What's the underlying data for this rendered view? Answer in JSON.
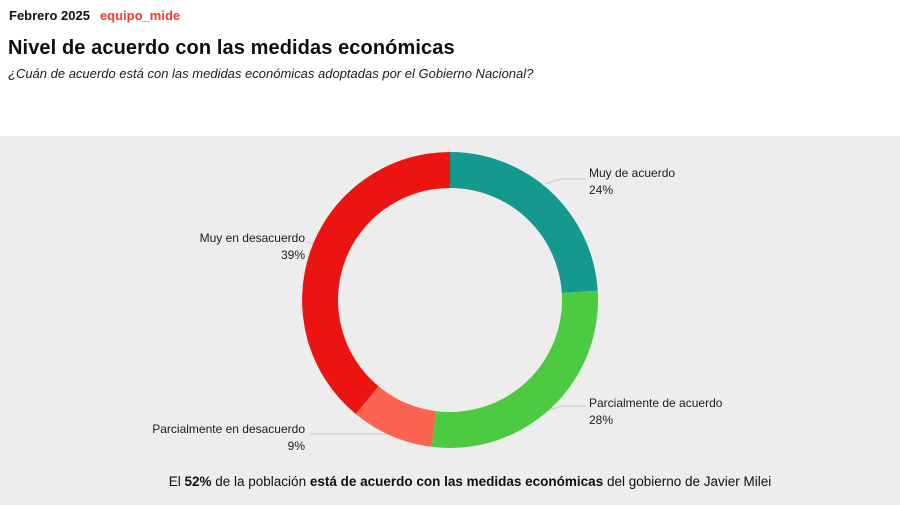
{
  "header": {
    "date": "Febrero 2025",
    "brand": "equipo_mide"
  },
  "title": "Nivel de acuerdo con las medidas económicas",
  "subtitle": "¿Cuán de acuerdo está con las medidas económicas adoptadas por el Gobierno Nacional?",
  "chart_data": {
    "type": "pie",
    "style": "donut",
    "title": "Nivel de acuerdo con las medidas económicas",
    "start_angle_deg": 0,
    "direction": "clockwise",
    "legend_position": "callout-labels",
    "segments": [
      {
        "label": "Muy de acuerdo",
        "value": 24,
        "pct_label": "24%",
        "color": "#14998e"
      },
      {
        "label": "Parcialmente de acuerdo",
        "value": 28,
        "pct_label": "28%",
        "color": "#4ccb40"
      },
      {
        "label": "Parcialmente en desacuerdo",
        "value": 9,
        "pct_label": "9%",
        "color": "#fa6450"
      },
      {
        "label": "Muy en desacuerdo",
        "value": 39,
        "pct_label": "39%",
        "color": "#ec1410"
      }
    ]
  },
  "footer": {
    "part1": "El ",
    "bold1": "52%",
    "part2": " de la población ",
    "bold2": "está de acuerdo con las medidas económicas",
    "part3": " del gobierno de Javier Milei"
  },
  "colors": {
    "panel_background": "#ededed",
    "header_background": "#ffffff",
    "brand_red": "#f2392c",
    "text": "#111111",
    "leader_line": "#c8c8c8"
  }
}
